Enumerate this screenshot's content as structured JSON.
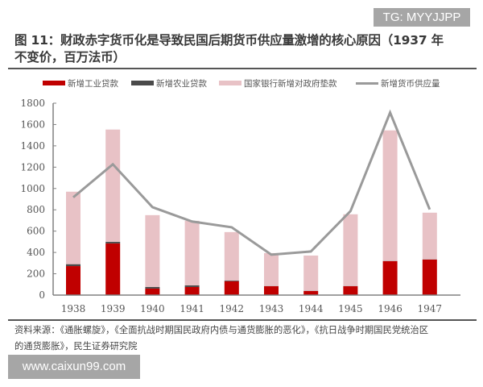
{
  "watermark_top": "TG: MYYJJPP",
  "title_line1": "图 11：财政赤字货币化是导致民国后期货币供应量激增的核心原因（1937 年",
  "title_line2": "不变价，百万法币）",
  "legend": [
    {
      "label": "新增工业贷款",
      "color": "#c00000",
      "type": "bar"
    },
    {
      "label": "新增农业贷款",
      "color": "#4a4a4a",
      "type": "bar"
    },
    {
      "label": "国家银行新增对政府垫款",
      "color": "#e8c2c6",
      "type": "bar"
    },
    {
      "label": "新增货币供应量",
      "color": "#9a9a9a",
      "type": "line"
    }
  ],
  "source_line1": "资料来源：《通胀螺旋》，《全面抗战时期国民政府内债与通货膨胀的恶化》，《抗日战争时期国民党统治区",
  "source_line2": "的通货膨胀》，民生证券研究院",
  "watermark_bottom": "www.caixun99.com",
  "chart_data": {
    "type": "bar",
    "stacked": true,
    "title": "财政赤字货币化是导致民国后期货币供应量激增的核心原因（1937 年不变价，百万法币）",
    "xlabel": "",
    "ylabel": "",
    "ylim": [
      0,
      1800
    ],
    "yticks": [
      0,
      200,
      400,
      600,
      800,
      1000,
      1200,
      1400,
      1600,
      1800
    ],
    "categories": [
      "1938",
      "1939",
      "1940",
      "1941",
      "1942",
      "1943",
      "1944",
      "1945",
      "1946",
      "1947"
    ],
    "series": [
      {
        "name": "新增工业贷款",
        "type": "bar",
        "color": "#c00000",
        "values": [
          272,
          485,
          61,
          76,
          130,
          83,
          38,
          83,
          318,
          333
        ]
      },
      {
        "name": "新增农业贷款",
        "type": "bar",
        "color": "#4a4a4a",
        "values": [
          18,
          15,
          15,
          15,
          6,
          2,
          2,
          2,
          2,
          2
        ]
      },
      {
        "name": "国家银行新增对政府垫款",
        "type": "bar",
        "color": "#e8c2c6",
        "values": [
          680,
          1053,
          674,
          606,
          455,
          309,
          331,
          673,
          1225,
          438
        ]
      },
      {
        "name": "新增货币供应量",
        "type": "line",
        "color": "#9a9a9a",
        "values": [
          917,
          1227,
          825,
          690,
          636,
          379,
          409,
          788,
          1712,
          803
        ]
      }
    ],
    "grid": false,
    "legend_position": "top"
  }
}
